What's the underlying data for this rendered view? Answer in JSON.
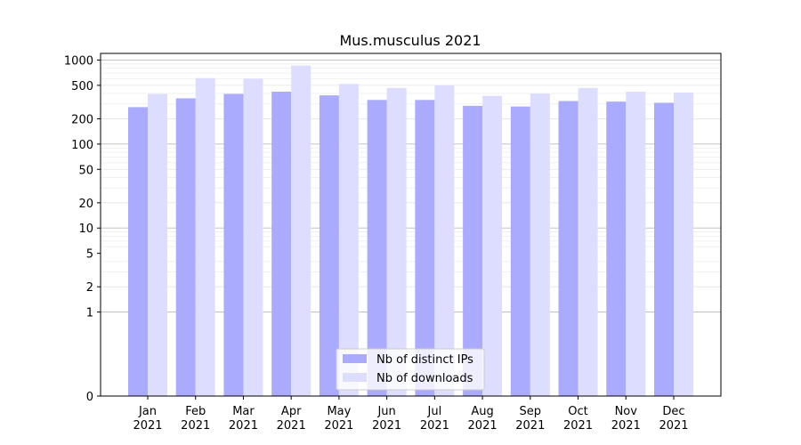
{
  "chart_data": {
    "type": "bar",
    "title": "Mus.musculus 2021",
    "categories": [
      [
        "Jan",
        "2021"
      ],
      [
        "Feb",
        "2021"
      ],
      [
        "Mar",
        "2021"
      ],
      [
        "Apr",
        "2021"
      ],
      [
        "May",
        "2021"
      ],
      [
        "Jun",
        "2021"
      ],
      [
        "Jul",
        "2021"
      ],
      [
        "Aug",
        "2021"
      ],
      [
        "Sep",
        "2021"
      ],
      [
        "Oct",
        "2021"
      ],
      [
        "Nov",
        "2021"
      ],
      [
        "Dec",
        "2021"
      ]
    ],
    "series": [
      {
        "name": "Nb of distinct IPs",
        "color": "#aaaaff",
        "values": [
          275,
          350,
          395,
          420,
          380,
          335,
          335,
          285,
          280,
          325,
          320,
          310
        ]
      },
      {
        "name": "Nb of downloads",
        "color": "#ddddff",
        "values": [
          395,
          610,
          600,
          860,
          520,
          465,
          505,
          375,
          400,
          465,
          420,
          410
        ]
      }
    ],
    "yscale": "symlog",
    "ylim": [
      0,
      1200
    ],
    "yticks": [
      0,
      1,
      2,
      5,
      10,
      20,
      50,
      100,
      200,
      500,
      1000
    ],
    "ytick_labels": [
      "0",
      "1",
      "2",
      "5",
      "10",
      "20",
      "50",
      "100",
      "200",
      "500",
      "1000"
    ],
    "grid": true,
    "legend": "bottom-center"
  }
}
